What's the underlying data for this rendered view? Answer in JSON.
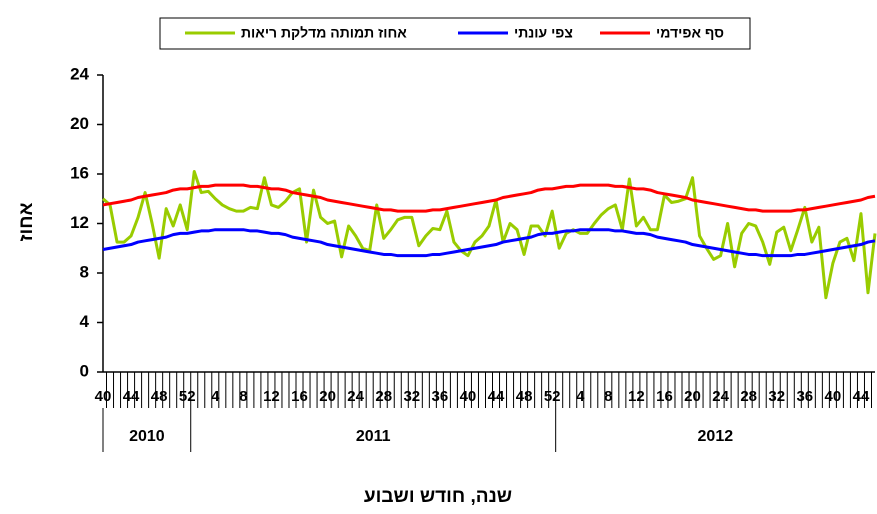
{
  "chart_data": {
    "type": "line",
    "y_axis_label": "אחוז",
    "x_axis_label": "שנה, חודש ושבוע",
    "groups": [
      "2010",
      "2011",
      "2012"
    ],
    "categories": [
      40,
      null,
      null,
      null,
      44,
      null,
      null,
      null,
      48,
      null,
      null,
      null,
      52,
      null,
      null,
      null,
      4,
      null,
      null,
      null,
      8,
      null,
      null,
      null,
      12,
      null,
      null,
      null,
      16,
      null,
      null,
      null,
      20,
      null,
      null,
      null,
      24,
      null,
      null,
      null,
      28,
      null,
      null,
      null,
      32,
      null,
      null,
      null,
      36,
      null,
      null,
      null,
      40,
      null,
      null,
      null,
      44,
      null,
      null,
      null,
      48,
      null,
      null,
      null,
      52,
      null,
      null,
      null,
      4,
      null,
      null,
      null,
      8,
      null,
      null,
      null,
      12,
      null,
      null,
      null,
      16,
      null,
      null,
      null,
      20,
      null,
      null,
      null,
      24,
      null,
      null,
      null,
      28,
      null,
      null,
      null,
      32,
      null,
      null,
      null,
      36,
      null,
      null,
      null,
      40,
      null,
      null,
      null,
      44,
      null,
      null
    ],
    "ylim": [
      0,
      24
    ],
    "yticks": [
      0,
      4,
      8,
      12,
      16,
      20,
      24
    ],
    "series": [
      {
        "name": "אחוז תמותה מדלקת ריאות",
        "color": "#99cc00",
        "values": [
          14.0,
          13.5,
          10.5,
          10.5,
          11.0,
          12.5,
          14.5,
          12.0,
          9.2,
          13.2,
          11.8,
          13.5,
          11.5,
          16.2,
          14.5,
          14.6,
          14.0,
          13.5,
          13.2,
          13.0,
          13.0,
          13.3,
          13.2,
          15.7,
          13.5,
          13.3,
          13.8,
          14.5,
          14.8,
          10.5,
          14.7,
          12.5,
          12.0,
          12.2,
          9.3,
          11.8,
          11.0,
          10.0,
          9.8,
          13.5,
          10.8,
          11.5,
          12.3,
          12.5,
          12.5,
          10.2,
          11.0,
          11.6,
          11.5,
          13.0,
          10.5,
          9.8,
          9.4,
          10.5,
          11.0,
          11.8,
          13.9,
          10.5,
          12.0,
          11.5,
          9.5,
          11.8,
          11.8,
          11.0,
          13.0,
          10.0,
          11.2,
          11.5,
          11.2,
          11.2,
          12.0,
          12.7,
          13.2,
          13.5,
          11.5,
          15.6,
          11.8,
          12.5,
          11.5,
          11.5,
          14.3,
          13.7,
          13.8,
          14.0,
          15.7,
          11.0,
          10.0,
          9.1,
          9.4,
          12.0,
          8.5,
          11.2,
          12.0,
          11.8,
          10.5,
          8.7,
          11.3,
          11.7,
          9.8,
          11.5,
          13.3,
          10.5,
          11.7,
          6.0,
          8.8,
          10.5,
          10.8,
          9.0,
          12.8,
          6.4,
          11.2
        ]
      },
      {
        "name": "צפי עונתי",
        "color": "#0000ff",
        "values": [
          9.9,
          10.0,
          10.1,
          10.2,
          10.3,
          10.5,
          10.6,
          10.7,
          10.8,
          10.9,
          11.1,
          11.2,
          11.2,
          11.3,
          11.4,
          11.4,
          11.5,
          11.5,
          11.5,
          11.5,
          11.5,
          11.4,
          11.4,
          11.3,
          11.2,
          11.2,
          11.1,
          10.9,
          10.8,
          10.7,
          10.6,
          10.5,
          10.3,
          10.2,
          10.1,
          10.0,
          9.9,
          9.8,
          9.7,
          9.6,
          9.5,
          9.5,
          9.4,
          9.4,
          9.4,
          9.4,
          9.4,
          9.5,
          9.5,
          9.6,
          9.7,
          9.8,
          9.9,
          10.0,
          10.1,
          10.2,
          10.3,
          10.5,
          10.6,
          10.7,
          10.8,
          10.9,
          11.1,
          11.2,
          11.2,
          11.3,
          11.4,
          11.4,
          11.5,
          11.5,
          11.5,
          11.5,
          11.5,
          11.4,
          11.4,
          11.3,
          11.2,
          11.2,
          11.1,
          10.9,
          10.8,
          10.7,
          10.6,
          10.5,
          10.3,
          10.2,
          10.1,
          10.0,
          9.9,
          9.8,
          9.7,
          9.6,
          9.5,
          9.5,
          9.4,
          9.4,
          9.4,
          9.4,
          9.4,
          9.5,
          9.5,
          9.6,
          9.7,
          9.8,
          9.9,
          10.0,
          10.1,
          10.2,
          10.3,
          10.5,
          10.6
        ]
      },
      {
        "name": "סף אפידמי",
        "color": "#ff0000",
        "values": [
          13.5,
          13.6,
          13.7,
          13.8,
          13.9,
          14.1,
          14.2,
          14.3,
          14.4,
          14.5,
          14.7,
          14.8,
          14.8,
          14.9,
          15.0,
          15.0,
          15.1,
          15.1,
          15.1,
          15.1,
          15.1,
          15.0,
          15.0,
          14.9,
          14.8,
          14.8,
          14.7,
          14.5,
          14.4,
          14.3,
          14.2,
          14.1,
          13.9,
          13.8,
          13.7,
          13.6,
          13.5,
          13.4,
          13.3,
          13.2,
          13.1,
          13.1,
          13.0,
          13.0,
          13.0,
          13.0,
          13.0,
          13.1,
          13.1,
          13.2,
          13.3,
          13.4,
          13.5,
          13.6,
          13.7,
          13.8,
          13.9,
          14.1,
          14.2,
          14.3,
          14.4,
          14.5,
          14.7,
          14.8,
          14.8,
          14.9,
          15.0,
          15.0,
          15.1,
          15.1,
          15.1,
          15.1,
          15.1,
          15.0,
          15.0,
          14.9,
          14.8,
          14.8,
          14.7,
          14.5,
          14.4,
          14.3,
          14.2,
          14.1,
          13.9,
          13.8,
          13.7,
          13.6,
          13.5,
          13.4,
          13.3,
          13.2,
          13.1,
          13.1,
          13.0,
          13.0,
          13.0,
          13.0,
          13.0,
          13.1,
          13.1,
          13.2,
          13.3,
          13.4,
          13.5,
          13.6,
          13.7,
          13.8,
          13.9,
          14.1,
          14.2
        ]
      }
    ]
  }
}
